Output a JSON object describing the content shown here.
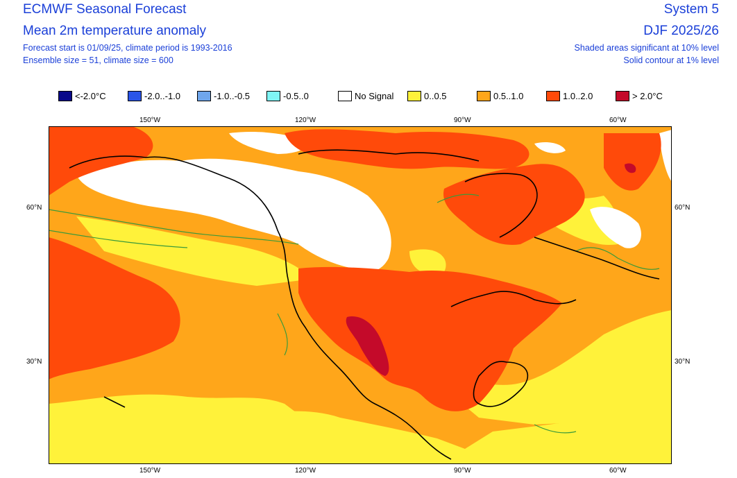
{
  "header": {
    "title": "ECMWF Seasonal Forecast",
    "subtitle": "Mean 2m temperature anomaly",
    "info_line1": "Forecast start is 01/09/25, climate period is 1993-2016",
    "info_line2": "Ensemble size = 51, climate size = 600",
    "system": "System 5",
    "season": "DJF 2025/26",
    "sig_line1": "Shaded areas significant at 10% level",
    "sig_line2": "Solid contour at 1% level"
  },
  "legend": [
    {
      "label": "<-2.0°C",
      "color": "#0a0a8a"
    },
    {
      "label": "-2.0..-1.0",
      "color": "#2a55e8"
    },
    {
      "label": "-1.0..-0.5",
      "color": "#6fa6ec"
    },
    {
      "label": "-0.5..0",
      "color": "#7ff5f5"
    },
    {
      "label": "No Signal",
      "color": "#ffffff"
    },
    {
      "label": "0..0.5",
      "color": "#fff23a"
    },
    {
      "label": "0.5..1.0",
      "color": "#ffa61a"
    },
    {
      "label": "1.0..2.0",
      "color": "#ff4a0a"
    },
    {
      "label": "> 2.0°C",
      "color": "#c40a2a"
    }
  ],
  "axes": {
    "top_lon": [
      "150°W",
      "120°W",
      "90°W",
      "60°W"
    ],
    "bottom_lon": [
      "150°W",
      "120°W",
      "90°W",
      "60°W"
    ],
    "left_lat": [
      "60°N",
      "30°N"
    ],
    "right_lat": [
      "60°N",
      "30°N"
    ]
  }
}
